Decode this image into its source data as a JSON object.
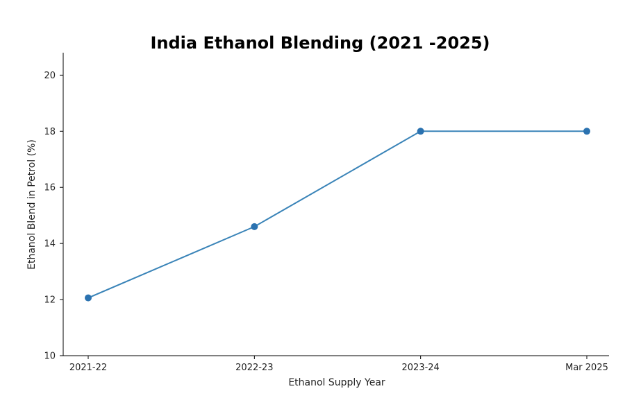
{
  "chart_data": {
    "type": "line",
    "title": "India Ethanol Blending (2021 -2025)",
    "xlabel": "Ethanol Supply Year",
    "ylabel": "Ethanol Blend in Petrol (%)",
    "categories": [
      "2021-22",
      "2022-23",
      "2023-24",
      "Mar 2025"
    ],
    "series": [
      {
        "values": [
          12.06,
          14.6,
          18.0,
          18.0
        ],
        "color": "#3a84b8",
        "marker_color": "#2b72b0"
      }
    ],
    "ylim": [
      10,
      20.8
    ],
    "yticks": [
      "10",
      "12",
      "14",
      "16",
      "18",
      "20"
    ],
    "grid": false,
    "legend": "none"
  }
}
